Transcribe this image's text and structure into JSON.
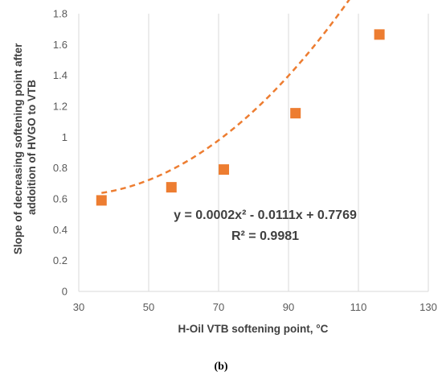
{
  "chart_data": {
    "type": "scatter",
    "xlabel": "H-Oil VTB softening point, °C",
    "ylabel": [
      "Slope of decreasing softening point after",
      "addoition of HVGO to VTB"
    ],
    "xlim": [
      30,
      130
    ],
    "ylim": [
      0,
      1.8
    ],
    "xticks": [
      "30",
      "50",
      "70",
      "90",
      "110",
      "130"
    ],
    "yticks": [
      "0",
      "0.2",
      "0.4",
      "0.6",
      "0.8",
      "1",
      "1.2",
      "1.4",
      "1.6",
      "1.8"
    ],
    "grid": "vertical",
    "marker": "square",
    "series": [
      {
        "points": [
          {
            "x": 36.5,
            "y": 0.59
          },
          {
            "x": 56.5,
            "y": 0.675
          },
          {
            "x": 71.5,
            "y": 0.79
          },
          {
            "x": 92.0,
            "y": 1.155
          },
          {
            "x": 116.0,
            "y": 1.665
          }
        ],
        "color": "#ED7D31"
      }
    ],
    "trendline": {
      "type": "polynomial",
      "order": 2,
      "coefficients": [
        0.0002,
        -0.0111,
        0.7769
      ],
      "color": "#ED7D31",
      "style": "dashed",
      "equation_label": "y = 0.0002x² - 0.0111x + 0.7769",
      "r2_label": "R² = 0.9981"
    }
  },
  "caption": "(b)"
}
